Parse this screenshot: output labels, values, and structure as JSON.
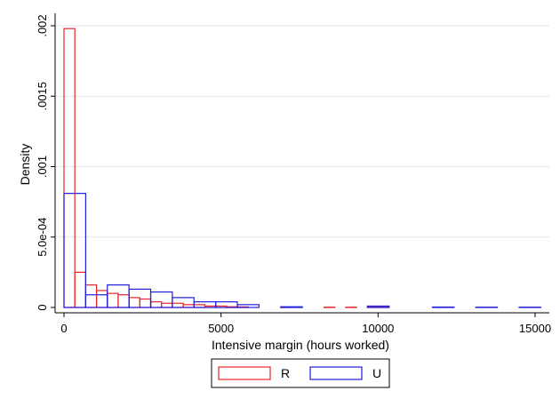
{
  "chart_data": {
    "type": "bar",
    "subtype": "histogram",
    "title": "",
    "xlabel": "Intensive margin (hours worked)",
    "ylabel": "Density",
    "xlim": [
      0,
      15000
    ],
    "ylim": [
      0,
      0.002
    ],
    "xticks": [
      0,
      5000,
      10000,
      15000
    ],
    "xtick_labels": [
      "0",
      "5000",
      "10000",
      "15000"
    ],
    "yticks": [
      0,
      0.0005,
      0.001,
      0.0015,
      0.002
    ],
    "ytick_labels": [
      "0",
      "5.0e-04",
      ".001",
      ".0015",
      ".002"
    ],
    "grid": true,
    "legend_position": "bottom",
    "series": [
      {
        "name": "R",
        "color": "#e8262a",
        "bin_width": 345,
        "bins": [
          {
            "x0": 0,
            "x1": 345,
            "value": 0.00198
          },
          {
            "x0": 345,
            "x1": 690,
            "value": 0.00025
          },
          {
            "x0": 690,
            "x1": 1035,
            "value": 0.00016
          },
          {
            "x0": 1035,
            "x1": 1380,
            "value": 0.00012
          },
          {
            "x0": 1380,
            "x1": 1725,
            "value": 0.0001
          },
          {
            "x0": 1725,
            "x1": 2070,
            "value": 9e-05
          },
          {
            "x0": 2070,
            "x1": 2415,
            "value": 7e-05
          },
          {
            "x0": 2415,
            "x1": 2760,
            "value": 6e-05
          },
          {
            "x0": 2760,
            "x1": 3105,
            "value": 4e-05
          },
          {
            "x0": 3105,
            "x1": 3450,
            "value": 3e-05
          },
          {
            "x0": 3450,
            "x1": 3795,
            "value": 3e-05
          },
          {
            "x0": 3795,
            "x1": 4140,
            "value": 2e-05
          },
          {
            "x0": 4140,
            "x1": 4485,
            "value": 2e-05
          },
          {
            "x0": 4485,
            "x1": 4830,
            "value": 1e-05
          },
          {
            "x0": 4830,
            "x1": 5175,
            "value": 1e-05
          },
          {
            "x0": 5175,
            "x1": 5520,
            "value": 5e-06
          },
          {
            "x0": 5520,
            "x1": 5865,
            "value": 4e-06
          },
          {
            "x0": 6900,
            "x1": 7245,
            "value": 3e-06
          },
          {
            "x0": 8280,
            "x1": 8625,
            "value": 2e-06
          },
          {
            "x0": 8970,
            "x1": 9315,
            "value": 2e-06
          },
          {
            "x0": 9660,
            "x1": 10005,
            "value": 2e-06
          },
          {
            "x0": 10005,
            "x1": 10350,
            "value": 2e-06
          }
        ]
      },
      {
        "name": "U",
        "color": "#1f1fe0",
        "bin_width": 690,
        "bins": [
          {
            "x0": 0,
            "x1": 690,
            "value": 0.00081
          },
          {
            "x0": 690,
            "x1": 1380,
            "value": 9e-05
          },
          {
            "x0": 1380,
            "x1": 2070,
            "value": 0.00016
          },
          {
            "x0": 2070,
            "x1": 2760,
            "value": 0.00013
          },
          {
            "x0": 2760,
            "x1": 3450,
            "value": 0.00011
          },
          {
            "x0": 3450,
            "x1": 4140,
            "value": 7e-05
          },
          {
            "x0": 4140,
            "x1": 4830,
            "value": 4e-05
          },
          {
            "x0": 4830,
            "x1": 5520,
            "value": 4e-05
          },
          {
            "x0": 5520,
            "x1": 6210,
            "value": 2e-05
          },
          {
            "x0": 6900,
            "x1": 7590,
            "value": 5e-06
          },
          {
            "x0": 9660,
            "x1": 10350,
            "value": 1e-05
          },
          {
            "x0": 11730,
            "x1": 12420,
            "value": 3e-06
          },
          {
            "x0": 13110,
            "x1": 13800,
            "value": 2e-06
          },
          {
            "x0": 14490,
            "x1": 15180,
            "value": 2e-06
          }
        ]
      }
    ]
  }
}
